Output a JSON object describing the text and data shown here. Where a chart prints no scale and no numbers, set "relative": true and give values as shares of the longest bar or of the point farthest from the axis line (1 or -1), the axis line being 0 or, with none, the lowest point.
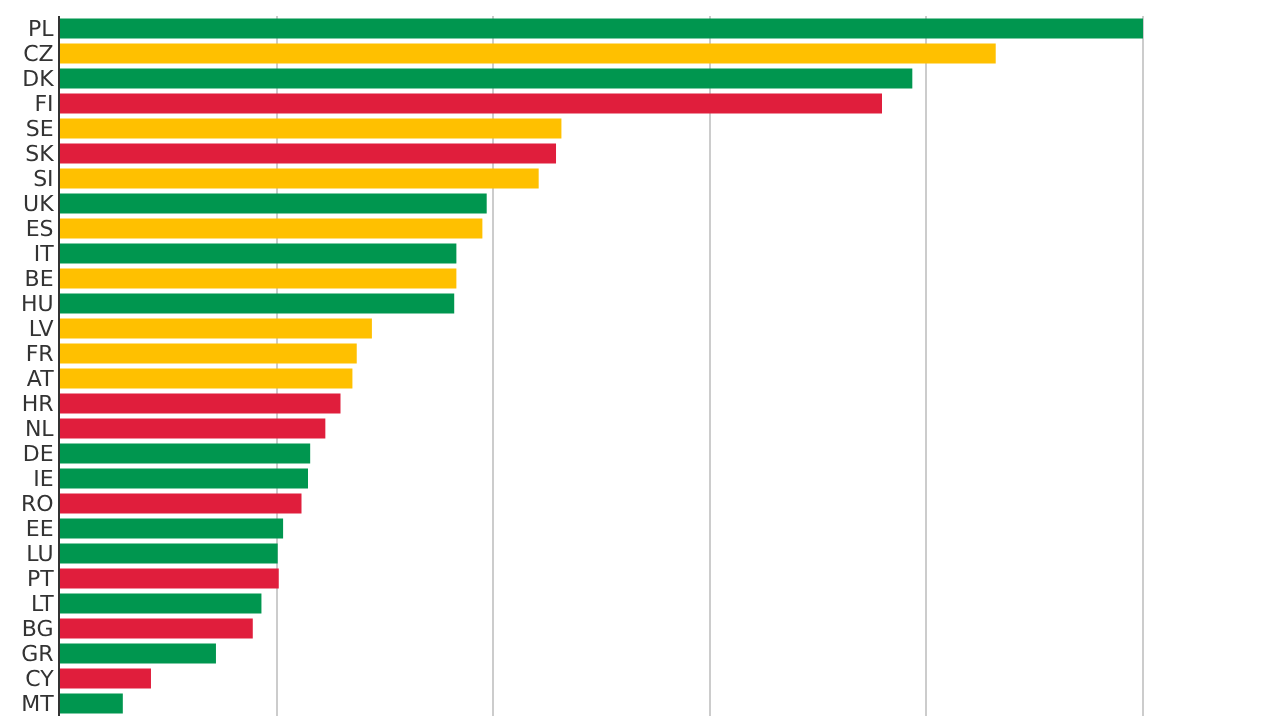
{
  "chart_data": {
    "type": "bar",
    "orientation": "horizontal",
    "relative": true,
    "grid": "x",
    "categories": [
      "PL",
      "CZ",
      "DK",
      "FI",
      "SE",
      "SK",
      "SI",
      "UK",
      "ES",
      "IT",
      "BE",
      "HU",
      "LV",
      "FR",
      "AT",
      "HR",
      "NL",
      "DE",
      "IE",
      "RO",
      "EE",
      "LU",
      "PT",
      "LT",
      "BG",
      "GR",
      "CY",
      "MT"
    ],
    "values": [
      1,
      0.864,
      0.787,
      0.759,
      0.463,
      0.458,
      0.442,
      0.394,
      0.39,
      0.366,
      0.366,
      0.364,
      0.288,
      0.274,
      0.27,
      0.259,
      0.245,
      0.231,
      0.229,
      0.223,
      0.206,
      0.201,
      0.202,
      0.186,
      0.178,
      0.144,
      0.084,
      0.058
    ],
    "colors": [
      "#00964f",
      "#ffc000",
      "#00964f",
      "#e01e3c",
      "#ffc000",
      "#e01e3c",
      "#ffc000",
      "#00964f",
      "#ffc000",
      "#00964f",
      "#ffc000",
      "#00964f",
      "#ffc000",
      "#ffc000",
      "#ffc000",
      "#e01e3c",
      "#e01e3c",
      "#00964f",
      "#00964f",
      "#e01e3c",
      "#00964f",
      "#00964f",
      "#e01e3c",
      "#00964f",
      "#e01e3c",
      "#00964f",
      "#e01e3c",
      "#00964f"
    ]
  }
}
